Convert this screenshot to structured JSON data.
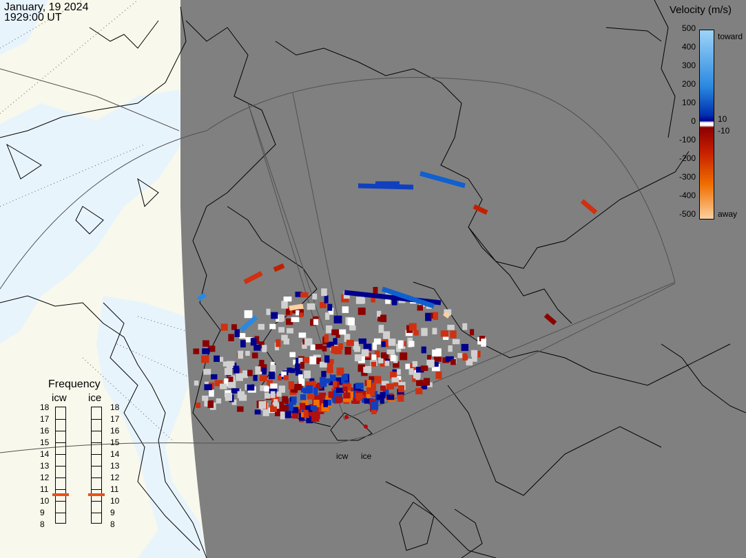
{
  "header": {
    "date": "January, 19 2024",
    "time": "1929:00 UT"
  },
  "colorbar": {
    "title": "Velocity (m/s)",
    "toward_label": "toward",
    "away_label": "away",
    "ticks": [
      "500",
      "400",
      "300",
      "200",
      "100",
      "0",
      "-100",
      "-200",
      "-300",
      "-400",
      "-500"
    ],
    "inner_pos": "10",
    "inner_neg": "-10"
  },
  "frequency": {
    "title": "Frequency",
    "radars": [
      {
        "name": "icw",
        "value_mhz": 10.5
      },
      {
        "name": "ice",
        "value_mhz": 10.5
      }
    ],
    "scale": [
      "18",
      "17",
      "16",
      "15",
      "14",
      "13",
      "12",
      "11",
      "10",
      "9",
      "8"
    ]
  },
  "sites": {
    "icw": "icw",
    "ice": "ice"
  },
  "colors": {
    "land_day": "#f8f8ec",
    "ocean_day": "#e8f4fc",
    "night": "#808080",
    "toward_light": "#9ed4f8",
    "toward_dark": "#00008c",
    "away_dark": "#8c0000",
    "away_light": "#fcd0a0",
    "ground_scatter": "#d0d0d0",
    "frequency_marker": "#e8501a"
  }
}
